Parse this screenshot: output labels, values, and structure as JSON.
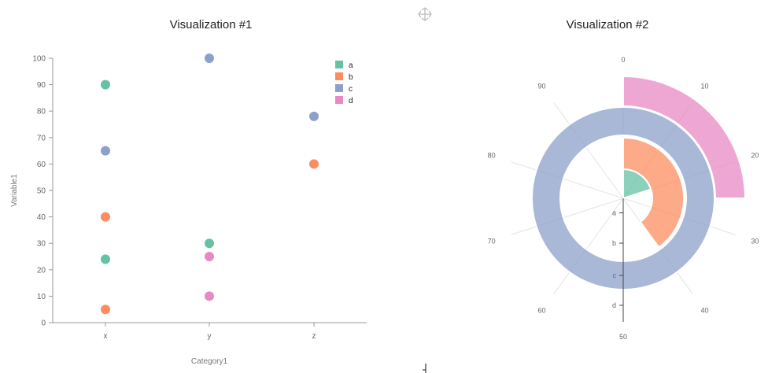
{
  "chart_data": [
    {
      "type": "scatter",
      "title": "Visualization #1",
      "xlabel": "Category1",
      "ylabel": "Variable1",
      "categories": [
        "x",
        "y",
        "z"
      ],
      "ylim": [
        0,
        100
      ],
      "yticks": [
        0,
        10,
        20,
        30,
        40,
        50,
        60,
        70,
        80,
        90,
        100
      ],
      "legend": "top-right",
      "series": [
        {
          "name": "a",
          "color": "#66c2a5",
          "points": [
            {
              "x": "x",
              "y": 90
            },
            {
              "x": "x",
              "y": 24
            },
            {
              "x": "y",
              "y": 30
            }
          ]
        },
        {
          "name": "b",
          "color": "#fc8d62",
          "points": [
            {
              "x": "x",
              "y": 40
            },
            {
              "x": "x",
              "y": 5
            },
            {
              "x": "z",
              "y": 60
            }
          ]
        },
        {
          "name": "c",
          "color": "#8da0cb",
          "points": [
            {
              "x": "x",
              "y": 65
            },
            {
              "x": "y",
              "y": 100
            },
            {
              "x": "z",
              "y": 78
            }
          ]
        },
        {
          "name": "d",
          "color": "#e78ac3",
          "points": [
            {
              "x": "y",
              "y": 25
            },
            {
              "x": "y",
              "y": 10
            }
          ]
        }
      ]
    },
    {
      "type": "radial-bar",
      "title": "Visualization #2",
      "angle_domain": [
        0,
        100
      ],
      "angle_ticks": [
        0,
        10,
        20,
        30,
        40,
        50,
        60,
        70,
        80,
        90
      ],
      "categories": [
        "a",
        "b",
        "c",
        "d"
      ],
      "series": [
        {
          "name": "a",
          "value": 20,
          "color": "#66c2a5"
        },
        {
          "name": "b",
          "value": 40,
          "color": "#fc8d62"
        },
        {
          "name": "c",
          "value": 100,
          "color": "#8da0cb"
        },
        {
          "name": "d",
          "value": 25,
          "color": "#e78ac3"
        }
      ]
    }
  ],
  "icons": {
    "move": "move-arrows-icon",
    "resize": "resize-handle-icon"
  }
}
